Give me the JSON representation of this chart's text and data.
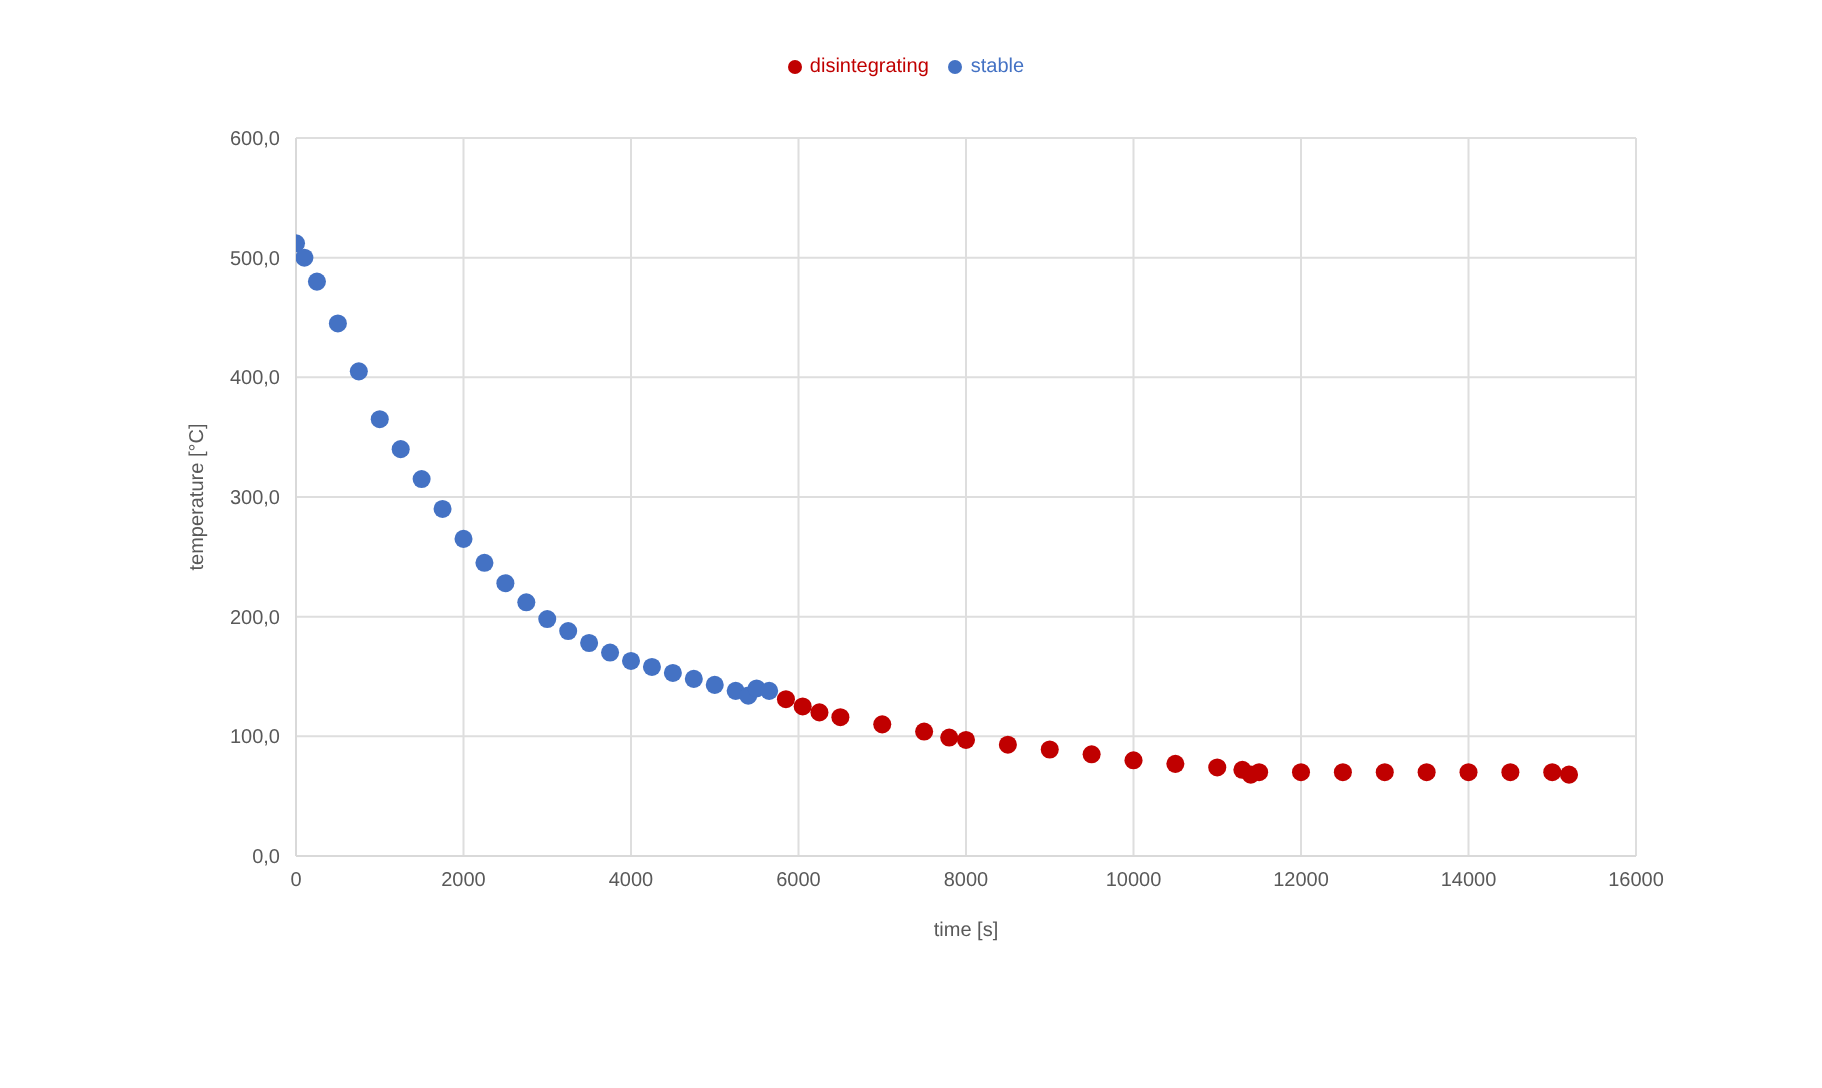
{
  "chart_data": {
    "type": "scatter",
    "xlabel": "time [s]",
    "ylabel": "temperature [°C]",
    "xlim": [
      0,
      16000
    ],
    "xticks": [
      0,
      2000,
      4000,
      6000,
      8000,
      10000,
      12000,
      14000,
      16000
    ],
    "ylim": [
      0,
      600
    ],
    "yticks": [
      {
        "value": 0,
        "label": "0,0"
      },
      {
        "value": 100,
        "label": "100,0"
      },
      {
        "value": 200,
        "label": "200,0"
      },
      {
        "value": 300,
        "label": "300,0"
      },
      {
        "value": 400,
        "label": "400,0"
      },
      {
        "value": 500,
        "label": "500,0"
      },
      {
        "value": 600,
        "label": "600,0"
      }
    ],
    "grid": true,
    "legend": "top",
    "marker": "circle",
    "series": [
      {
        "name": "stable",
        "color": "#4472c4",
        "x": [
          0,
          100,
          250,
          500,
          750,
          1000,
          1250,
          1500,
          1750,
          2000,
          2250,
          2500,
          2750,
          3000,
          3250,
          3500,
          3750,
          4000,
          4250,
          4500,
          4750,
          5000,
          5250,
          5400,
          5500,
          5650
        ],
        "values": [
          512,
          500,
          480,
          445,
          405,
          365,
          340,
          315,
          290,
          265,
          245,
          228,
          212,
          198,
          188,
          178,
          170,
          163,
          158,
          153,
          148,
          143,
          138,
          134,
          140,
          138
        ]
      },
      {
        "name": "disintegrating",
        "color": "#c00000",
        "x": [
          5850,
          6050,
          6250,
          6500,
          7000,
          7500,
          7800,
          8000,
          8500,
          9000,
          9500,
          10000,
          10500,
          11000,
          11300,
          11400,
          11500,
          12000,
          12500,
          13000,
          13500,
          14000,
          14500,
          15000,
          15200
        ],
        "values": [
          131,
          125,
          120,
          116,
          110,
          104,
          99,
          97,
          93,
          89,
          85,
          80,
          77,
          74,
          72,
          68,
          70,
          70,
          70,
          70,
          70,
          70,
          70,
          70,
          68
        ]
      }
    ]
  }
}
